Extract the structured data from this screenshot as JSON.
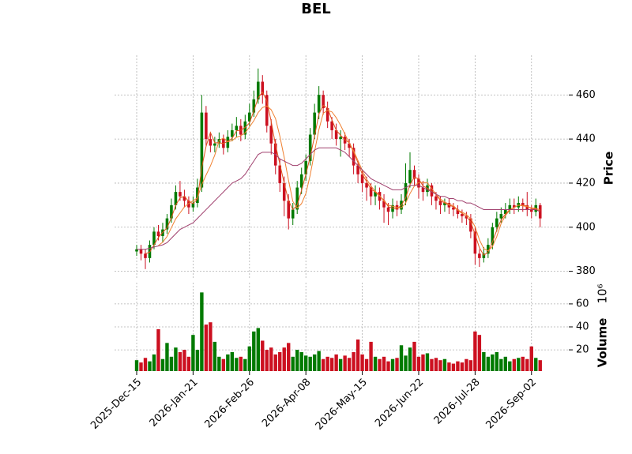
{
  "chart_data": {
    "type": "candlestick",
    "title": "BEL",
    "ylabel": "Price",
    "categories": [
      "2025-Dec-15",
      null,
      null,
      null,
      null,
      null,
      null,
      null,
      null,
      null,
      null,
      null,
      null,
      "2026-Jan-21",
      null,
      null,
      null,
      null,
      null,
      null,
      null,
      null,
      null,
      null,
      null,
      null,
      "2026-Feb-26",
      null,
      null,
      null,
      null,
      null,
      null,
      null,
      null,
      null,
      null,
      null,
      null,
      "2026-Apr-08",
      null,
      null,
      null,
      null,
      null,
      null,
      null,
      null,
      null,
      null,
      null,
      null,
      "2026-May-15",
      null,
      null,
      null,
      null,
      null,
      null,
      null,
      null,
      null,
      null,
      null,
      null,
      "2026-Jun-22",
      null,
      null,
      null,
      null,
      null,
      null,
      null,
      null,
      null,
      null,
      null,
      null,
      "2026-Jul-28",
      null,
      null,
      null,
      null,
      null,
      null,
      null,
      null,
      null,
      null,
      null,
      null,
      "2026-Sep-02",
      null,
      null
    ],
    "open": [
      389,
      390,
      388,
      386,
      392,
      398,
      396,
      399,
      404,
      410,
      416,
      414,
      412,
      409,
      411,
      418,
      452,
      440,
      437,
      438,
      440,
      436,
      441,
      444,
      446,
      442,
      448,
      452,
      458,
      466,
      460,
      446,
      438,
      428,
      420,
      412,
      404,
      408,
      418,
      424,
      430,
      442,
      452,
      460,
      454,
      448,
      444,
      440,
      441,
      438,
      436,
      428,
      424,
      420,
      418,
      414,
      416,
      412,
      409,
      407,
      410,
      408,
      412,
      420,
      426,
      422,
      418,
      416,
      419,
      414,
      412,
      410,
      411,
      409,
      408,
      406,
      405,
      404,
      398,
      388,
      386,
      388,
      392,
      400,
      404,
      406,
      408,
      410,
      409,
      411,
      410,
      408,
      407,
      410
    ],
    "high": [
      392,
      392,
      390,
      394,
      400,
      401,
      402,
      406,
      413,
      419,
      421,
      417,
      414,
      414,
      422,
      460,
      455,
      443,
      441,
      443,
      442,
      444,
      447,
      450,
      449,
      451,
      456,
      462,
      472,
      469,
      462,
      449,
      440,
      431,
      423,
      415,
      411,
      421,
      427,
      433,
      445,
      456,
      464,
      462,
      457,
      450,
      447,
      444,
      443,
      440,
      438,
      430,
      426,
      423,
      420,
      419,
      418,
      415,
      411,
      413,
      412,
      415,
      429,
      434,
      428,
      424,
      421,
      422,
      420,
      416,
      414,
      413,
      413,
      411,
      410,
      408,
      407,
      406,
      400,
      390,
      391,
      395,
      402,
      407,
      409,
      411,
      413,
      413,
      414,
      413,
      416,
      410,
      413,
      411
    ],
    "low": [
      387,
      385,
      381,
      384,
      390,
      394,
      393,
      397,
      402,
      408,
      412,
      409,
      406,
      407,
      409,
      416,
      437,
      434,
      434,
      436,
      433,
      434,
      439,
      441,
      439,
      440,
      446,
      450,
      456,
      456,
      443,
      433,
      424,
      416,
      405,
      399,
      401,
      406,
      415,
      421,
      428,
      440,
      449,
      451,
      445,
      440,
      437,
      432,
      435,
      432,
      424,
      420,
      416,
      412,
      410,
      410,
      408,
      402,
      401,
      404,
      405,
      406,
      410,
      418,
      419,
      413,
      412,
      414,
      410,
      408,
      406,
      407,
      406,
      405,
      404,
      402,
      401,
      395,
      383,
      382,
      384,
      386,
      390,
      398,
      402,
      404,
      406,
      406,
      407,
      407,
      405,
      404,
      405,
      400
    ],
    "close": [
      390,
      388,
      386,
      392,
      398,
      396,
      399,
      404,
      410,
      416,
      414,
      412,
      409,
      411,
      418,
      452,
      440,
      437,
      438,
      440,
      436,
      441,
      444,
      446,
      442,
      448,
      452,
      458,
      466,
      460,
      446,
      438,
      428,
      420,
      412,
      404,
      408,
      418,
      424,
      430,
      442,
      452,
      460,
      454,
      448,
      444,
      440,
      441,
      438,
      436,
      428,
      424,
      420,
      418,
      414,
      416,
      412,
      409,
      407,
      410,
      408,
      412,
      420,
      426,
      422,
      418,
      416,
      419,
      414,
      412,
      410,
      411,
      409,
      408,
      406,
      405,
      404,
      398,
      388,
      386,
      388,
      392,
      400,
      404,
      406,
      408,
      410,
      409,
      411,
      410,
      408,
      407,
      410,
      404
    ],
    "up_color": "#007a00",
    "down_color": "#cc1020",
    "moving_averages": [
      {
        "color": "#e2531e",
        "values": [
          null,
          null,
          388,
          388.7,
          392,
          395.3,
          397.7,
          399.7,
          404.3,
          410,
          413.3,
          414,
          411.7,
          410.7,
          412.7,
          427,
          436.7,
          443,
          438.3,
          438.3,
          438,
          439,
          440.3,
          443.7,
          444,
          445.3,
          447.3,
          452.7,
          458.7,
          461.3,
          457.3,
          448,
          437.3,
          428.7,
          420,
          412,
          408,
          410,
          416.7,
          424,
          432,
          441.3,
          451.3,
          455.3,
          454,
          448.7,
          444,
          441.7,
          439.7,
          438.3,
          434,
          429.3,
          424,
          420.7,
          417.3,
          416,
          414,
          412.3,
          409.3,
          408.7,
          408.3,
          410,
          413.3,
          419.3,
          422.7,
          422,
          418.7,
          417.7,
          416.3,
          415,
          412,
          411,
          410,
          409.3,
          407.7,
          406.3,
          405,
          402.3,
          396.7,
          390.7,
          387.3,
          388.7,
          393.3,
          398.7,
          403.3,
          406,
          408,
          409,
          410,
          410,
          409.7,
          408.3,
          408.3,
          407
        ]
      },
      {
        "color": "#f08030",
        "values": [
          null,
          null,
          null,
          null,
          null,
          391.7,
          393.2,
          395.8,
          399.8,
          403.8,
          406.5,
          409.2,
          410.8,
          412,
          413.3,
          419.3,
          423.7,
          427.8,
          432.7,
          439.3,
          440.5,
          438.7,
          439.3,
          440.8,
          441.5,
          442.8,
          445.5,
          448.3,
          452,
          454.3,
          455,
          453.3,
          449.3,
          441.3,
          431.7,
          421.3,
          411.7,
          408.7,
          410.7,
          415.3,
          423.7,
          434.3,
          444.3,
          451.7,
          453,
          452.3,
          449.7,
          446.2,
          442.2,
          438.3,
          434.7,
          430.3,
          425.8,
          421.8,
          418.7,
          416.3,
          414.3,
          411.8,
          410,
          409.5,
          409,
          408.8,
          411,
          415.3,
          418.7,
          420.3,
          420.3,
          420.2,
          417.5,
          415,
          412.8,
          411.5,
          410.3,
          409.8,
          407.8,
          406.8,
          405.8,
          403.8,
          400.2,
          394.3,
          390.3,
          389.3,
          391.2,
          395.8,
          401.7,
          405.3,
          407.7,
          409,
          410,
          409.7,
          409.3,
          408.8,
          408.7,
          407.7
        ]
      },
      {
        "color": "#a0406e",
        "values": [
          390,
          390,
          390,
          390.5,
          391,
          391.5,
          392,
          393,
          395,
          397,
          399,
          400,
          401,
          402,
          404,
          406,
          408,
          410,
          412,
          414,
          416,
          418,
          420,
          421,
          422,
          424,
          427,
          430,
          433,
          434,
          434,
          434,
          433,
          431,
          430,
          429,
          428,
          428,
          429,
          431,
          433,
          435,
          436,
          436,
          436,
          436,
          436,
          435,
          434,
          432,
          430,
          428,
          426,
          424,
          422,
          421,
          420,
          419,
          418,
          417,
          417,
          417,
          418,
          419,
          419,
          419,
          418,
          417,
          416,
          415,
          414,
          414,
          413,
          413,
          412,
          412,
          411,
          411,
          410,
          409,
          408,
          408,
          408,
          408,
          408,
          408,
          408,
          408,
          408,
          408,
          408,
          408,
          408,
          407
        ]
      }
    ],
    "xlim": [
      -5.1,
      99.6
    ],
    "ylim": [
      377,
      478
    ],
    "yticks": [
      380,
      400,
      420,
      440,
      460
    ],
    "grid": true,
    "volume": {
      "label": "Volume",
      "scale_label": "10⁶",
      "values": [
        11,
        9,
        13,
        10,
        16,
        38,
        12,
        26,
        14,
        22,
        18,
        20,
        14,
        33,
        20,
        70,
        42,
        44,
        27,
        14,
        12,
        16,
        18,
        13,
        14,
        12,
        23,
        36,
        39,
        28,
        20,
        22,
        16,
        18,
        22,
        26,
        14,
        20,
        18,
        15,
        14,
        16,
        19,
        12,
        14,
        13,
        16,
        12,
        15,
        13,
        18,
        29,
        16,
        12,
        27,
        14,
        12,
        14,
        10,
        12,
        13,
        24,
        15,
        22,
        27,
        14,
        16,
        17,
        12,
        13,
        11,
        12,
        9,
        8,
        10,
        9,
        12,
        11,
        36,
        33,
        18,
        14,
        16,
        18,
        12,
        14,
        10,
        12,
        13,
        14,
        12,
        23,
        13,
        11
      ],
      "ylim": [
        1.5,
        78.5
      ],
      "yticks": [
        20,
        40,
        60
      ]
    }
  }
}
